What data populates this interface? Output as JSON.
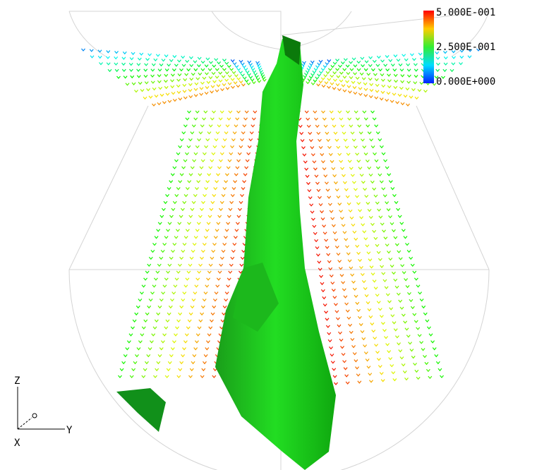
{
  "legend": {
    "max_label": "5.000E-001",
    "mid_label": "2.500E-001",
    "min_label": "0.000E+000"
  },
  "axes": {
    "z": "Z",
    "y": "Y",
    "x": "X"
  }
}
